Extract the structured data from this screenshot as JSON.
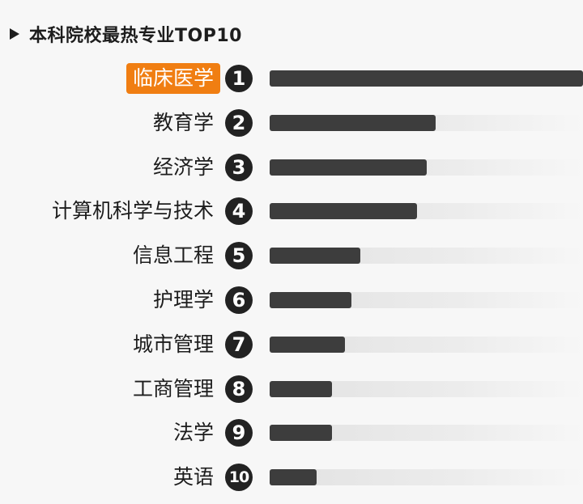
{
  "header": {
    "title": "本科院校最热专业TOP10"
  },
  "chart_data": {
    "type": "bar",
    "orientation": "horizontal",
    "title": "本科院校最热专业TOP10",
    "categories": [
      "临床医学",
      "教育学",
      "经济学",
      "计算机科学与技术",
      "信息工程",
      "护理学",
      "城市管理",
      "工商管理",
      "法学",
      "英语"
    ],
    "ranks": [
      "1",
      "2",
      "3",
      "4",
      "5",
      "6",
      "7",
      "8",
      "9",
      "10"
    ],
    "values": [
      1.0,
      0.53,
      0.5,
      0.47,
      0.29,
      0.26,
      0.24,
      0.2,
      0.2,
      0.15
    ],
    "xlim": [
      0,
      1
    ],
    "highlight_index": 0,
    "colors": {
      "bar": "#3d3d3d",
      "track": "#e2e2e2",
      "highlight": "#f07e12",
      "rank_badge": "#222222"
    },
    "grid": false,
    "legend": "none"
  }
}
